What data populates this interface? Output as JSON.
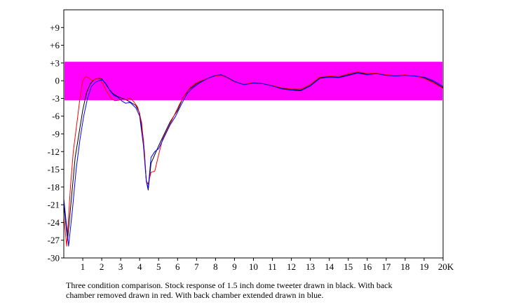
{
  "chart_data": {
    "type": "line",
    "title": "",
    "xlabel": "",
    "ylabel": "",
    "xlim": [
      0,
      20
    ],
    "ylim": [
      -30,
      12
    ],
    "x_tick_labels": [
      "1",
      "2",
      "3",
      "4",
      "5",
      "6",
      "7",
      "8",
      "9",
      "10",
      "11",
      "12",
      "13",
      "14",
      "15",
      "16",
      "17",
      "18",
      "19",
      "20K"
    ],
    "y_tick_labels": [
      "+9",
      "+6",
      "+3",
      "0",
      "-3",
      "-6",
      "-9",
      "-12",
      "-15",
      "-18",
      "-21",
      "-24",
      "-27",
      "-30"
    ],
    "band": {
      "from": -3.3,
      "to": 3.2,
      "color": "#ff00ff"
    },
    "series": [
      {
        "name": "Stock",
        "color": "#000000",
        "points": [
          [
            0,
            -21
          ],
          [
            0.2,
            -27
          ],
          [
            0.4,
            -20
          ],
          [
            0.6,
            -13
          ],
          [
            0.8,
            -9
          ],
          [
            1.0,
            -5
          ],
          [
            1.2,
            -2
          ],
          [
            1.4,
            -0.5
          ],
          [
            1.6,
            0.2
          ],
          [
            1.8,
            0.4
          ],
          [
            2.0,
            0.3
          ],
          [
            2.2,
            -0.5
          ],
          [
            2.4,
            -1.5
          ],
          [
            2.6,
            -2.2
          ],
          [
            2.8,
            -2.6
          ],
          [
            3.0,
            -2.9
          ],
          [
            3.2,
            -3.1
          ],
          [
            3.5,
            -3.6
          ],
          [
            3.8,
            -4.2
          ],
          [
            4.0,
            -5.5
          ],
          [
            4.2,
            -10
          ],
          [
            4.35,
            -17
          ],
          [
            4.45,
            -18.5
          ],
          [
            4.6,
            -14
          ],
          [
            4.8,
            -12.5
          ],
          [
            5.0,
            -11
          ],
          [
            5.3,
            -9
          ],
          [
            5.6,
            -7
          ],
          [
            6.0,
            -5
          ],
          [
            6.3,
            -2.8
          ],
          [
            6.6,
            -1.5
          ],
          [
            7.0,
            -0.5
          ],
          [
            7.5,
            0.3
          ],
          [
            8.0,
            0.9
          ],
          [
            8.3,
            1.0
          ],
          [
            8.6,
            0.6
          ],
          [
            9.0,
            -0.2
          ],
          [
            9.5,
            -0.6
          ],
          [
            10.0,
            -0.4
          ],
          [
            10.5,
            -0.5
          ],
          [
            11.0,
            -0.9
          ],
          [
            11.5,
            -1.3
          ],
          [
            12.0,
            -1.5
          ],
          [
            12.5,
            -1.6
          ],
          [
            13.0,
            -0.8
          ],
          [
            13.5,
            0.5
          ],
          [
            14.0,
            0.7
          ],
          [
            14.5,
            0.6
          ],
          [
            15.0,
            1.0
          ],
          [
            15.5,
            1.4
          ],
          [
            16.0,
            1.1
          ],
          [
            16.5,
            1.2
          ],
          [
            17.0,
            0.9
          ],
          [
            17.5,
            0.8
          ],
          [
            18.0,
            0.9
          ],
          [
            18.5,
            0.8
          ],
          [
            19.0,
            0.5
          ],
          [
            19.5,
            -0.2
          ],
          [
            20.0,
            -1.2
          ]
        ]
      },
      {
        "name": "Back chamber removed",
        "color": "#ff0000",
        "points": [
          [
            0,
            -23
          ],
          [
            0.15,
            -28
          ],
          [
            0.35,
            -18
          ],
          [
            0.5,
            -12
          ],
          [
            0.7,
            -7
          ],
          [
            0.85,
            -3
          ],
          [
            1.0,
            0
          ],
          [
            1.15,
            0.7
          ],
          [
            1.3,
            0.5
          ],
          [
            1.5,
            0
          ],
          [
            1.7,
            0.3
          ],
          [
            1.9,
            0.5
          ],
          [
            2.1,
            -0.8
          ],
          [
            2.3,
            -2
          ],
          [
            2.5,
            -3
          ],
          [
            2.7,
            -3.4
          ],
          [
            2.9,
            -3.3
          ],
          [
            3.1,
            -3.1
          ],
          [
            3.3,
            -3.2
          ],
          [
            3.5,
            -2.9
          ],
          [
            3.7,
            -3.6
          ],
          [
            3.9,
            -4.5
          ],
          [
            4.1,
            -7
          ],
          [
            4.25,
            -12
          ],
          [
            4.35,
            -17
          ],
          [
            4.45,
            -17.5
          ],
          [
            4.6,
            -15.5
          ],
          [
            4.8,
            -15.3
          ],
          [
            5.0,
            -12.5
          ],
          [
            5.2,
            -10
          ],
          [
            5.5,
            -8
          ],
          [
            5.8,
            -6
          ],
          [
            6.1,
            -4
          ],
          [
            6.4,
            -2.3
          ],
          [
            6.7,
            -1.0
          ],
          [
            7.0,
            -0.3
          ],
          [
            7.5,
            0.3
          ],
          [
            8.0,
            0.8
          ],
          [
            8.3,
            0.9
          ],
          [
            8.6,
            0.5
          ],
          [
            9.0,
            -0.2
          ],
          [
            9.5,
            -0.6
          ],
          [
            10.0,
            -0.3
          ],
          [
            10.5,
            -0.5
          ],
          [
            11.0,
            -0.8
          ],
          [
            11.5,
            -1.2
          ],
          [
            12.0,
            -1.4
          ],
          [
            12.5,
            -1.4
          ],
          [
            13.0,
            -0.6
          ],
          [
            13.5,
            0.6
          ],
          [
            14.0,
            0.8
          ],
          [
            14.5,
            0.7
          ],
          [
            15.0,
            1.2
          ],
          [
            15.5,
            1.5
          ],
          [
            16.0,
            1.2
          ],
          [
            16.5,
            1.3
          ],
          [
            17.0,
            1.0
          ],
          [
            17.5,
            0.9
          ],
          [
            18.0,
            1.0
          ],
          [
            18.5,
            0.8
          ],
          [
            19.0,
            0.4
          ],
          [
            19.5,
            -0.4
          ],
          [
            20.0,
            -1.3
          ]
        ]
      },
      {
        "name": "Back chamber extended",
        "color": "#0000ff",
        "points": [
          [
            0,
            -20
          ],
          [
            0.25,
            -28
          ],
          [
            0.45,
            -22
          ],
          [
            0.65,
            -15
          ],
          [
            0.85,
            -10
          ],
          [
            1.05,
            -6
          ],
          [
            1.25,
            -3
          ],
          [
            1.45,
            -1
          ],
          [
            1.65,
            -0.3
          ],
          [
            1.85,
            0
          ],
          [
            2.05,
            0.1
          ],
          [
            2.25,
            -0.6
          ],
          [
            2.45,
            -1.8
          ],
          [
            2.65,
            -2.5
          ],
          [
            2.85,
            -2.8
          ],
          [
            3.05,
            -3.4
          ],
          [
            3.25,
            -3.8
          ],
          [
            3.5,
            -3.7
          ],
          [
            3.8,
            -4.6
          ],
          [
            4.0,
            -6
          ],
          [
            4.2,
            -11
          ],
          [
            4.35,
            -17
          ],
          [
            4.45,
            -18.2
          ],
          [
            4.6,
            -13
          ],
          [
            4.8,
            -12
          ],
          [
            5.0,
            -11.5
          ],
          [
            5.3,
            -9.5
          ],
          [
            5.6,
            -7.5
          ],
          [
            5.9,
            -6
          ],
          [
            6.2,
            -4
          ],
          [
            6.5,
            -2.2
          ],
          [
            6.8,
            -1.2
          ],
          [
            7.2,
            -0.3
          ],
          [
            7.6,
            0.4
          ],
          [
            8.0,
            0.9
          ],
          [
            8.3,
            1.0
          ],
          [
            8.6,
            0.6
          ],
          [
            9.0,
            -0.1
          ],
          [
            9.5,
            -0.7
          ],
          [
            10.0,
            -0.4
          ],
          [
            10.5,
            -0.5
          ],
          [
            11.0,
            -0.9
          ],
          [
            11.5,
            -1.4
          ],
          [
            12.0,
            -1.6
          ],
          [
            12.5,
            -1.7
          ],
          [
            13.0,
            -0.9
          ],
          [
            13.5,
            0.4
          ],
          [
            14.0,
            0.6
          ],
          [
            14.5,
            0.5
          ],
          [
            15.0,
            0.9
          ],
          [
            15.5,
            1.3
          ],
          [
            16.0,
            1.0
          ],
          [
            16.5,
            1.2
          ],
          [
            17.0,
            0.9
          ],
          [
            17.5,
            0.8
          ],
          [
            18.0,
            0.9
          ],
          [
            18.5,
            0.8
          ],
          [
            19.0,
            0.6
          ],
          [
            19.5,
            0.0
          ],
          [
            20.0,
            -1.0
          ]
        ]
      }
    ]
  },
  "caption": {
    "line1": "Three condition comparison.  Stock response of 1.5 inch dome tweeter drawn in black.  With back",
    "line2": "chamber removed drawn in red.  With back chamber extended drawn in blue."
  }
}
